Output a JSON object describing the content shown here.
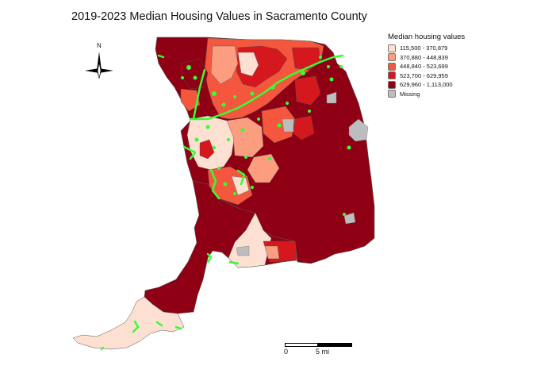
{
  "title": "2019-2023 Median Housing Values in Sacramento County",
  "legend": {
    "title": "Median housing values",
    "items": [
      {
        "label": "115,500 - 370,879",
        "color": "#fde0d2"
      },
      {
        "label": "370,880 - 448,839",
        "color": "#fc9d80"
      },
      {
        "label": "448,840 - 523,699",
        "color": "#f4573d"
      },
      {
        "label": "523,700 - 629,959",
        "color": "#d4181e"
      },
      {
        "label": "629,960 - 1,113,000",
        "color": "#900014"
      },
      {
        "label": "Missing",
        "color": "#bdbdbd"
      }
    ]
  },
  "scalebar": {
    "start_label": "0",
    "end_label": "5 mi"
  },
  "north_arrow": {
    "label": "N",
    "icon": "compass-rose-icon"
  },
  "colors": {
    "water_overlay": "#33ff33",
    "boundary": "#555555",
    "missing": "#bdbdbd"
  }
}
